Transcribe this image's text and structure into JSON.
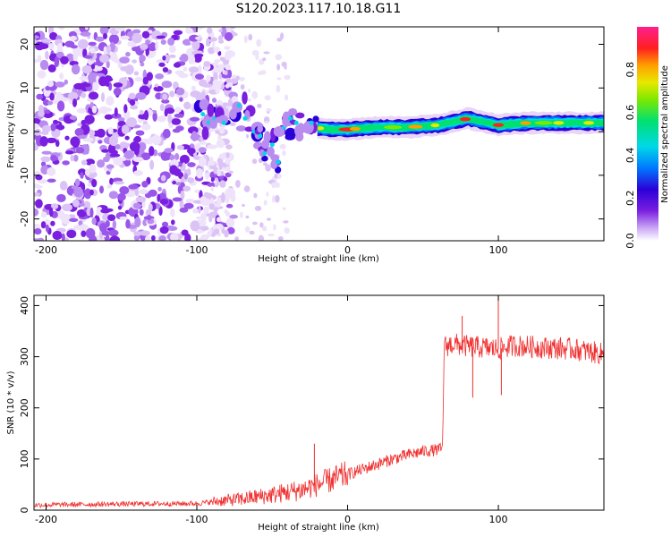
{
  "title": "S120.2023.117.10.18.G11",
  "chart_data": [
    {
      "type": "heatmap",
      "panel": "spectrogram",
      "xlabel": "Height of straight line (km)",
      "ylabel": "Frequency (Hz)",
      "xlim": [
        -208,
        170
      ],
      "ylim": [
        -25,
        24
      ],
      "xticks": [
        -200,
        -100,
        0,
        100
      ],
      "yticks": [
        -20,
        -10,
        0,
        10,
        20
      ],
      "colorbar": {
        "label": "Normalized spectral amplitude",
        "range": [
          0.0,
          1.0
        ],
        "ticks": [
          0.0,
          0.2,
          0.4,
          0.6,
          0.8
        ]
      },
      "ridge": {
        "description_points_x_km": [
          -100,
          -80,
          -60,
          -40,
          -25,
          -10,
          0,
          20,
          40,
          60,
          80,
          100,
          120,
          140,
          170
        ],
        "frequency_hz": [
          3,
          2,
          0,
          -2,
          1,
          0.5,
          0.5,
          1,
          1,
          1.5,
          3,
          1.5,
          2,
          2,
          2
        ]
      },
      "noise_region_km": [
        -208,
        -95
      ],
      "colors": [
        "#ffffff",
        "#e9d5f5",
        "#b98cf0",
        "#7a1fe0",
        "#2a00d8",
        "#0078ff",
        "#00d8e8",
        "#00e070",
        "#c8f000",
        "#ff9f00",
        "#ff2020",
        "#ff2a8a"
      ]
    },
    {
      "type": "line",
      "panel": "snr",
      "xlabel": "Height of straight line (km)",
      "ylabel": "SNR (10 * v/v)",
      "xlim": [
        -208,
        170
      ],
      "ylim": [
        0,
        420
      ],
      "xticks": [
        -200,
        -100,
        0,
        100
      ],
      "yticks": [
        0,
        100,
        200,
        300,
        400
      ],
      "series": [
        {
          "color": "#f03030",
          "trend_x": [
            -208,
            -150,
            -100,
            -85,
            -70,
            -50,
            -30,
            -20,
            -10,
            0,
            10,
            20,
            30,
            40,
            50,
            60,
            63,
            64,
            70,
            80,
            90,
            100,
            110,
            130,
            150,
            170
          ],
          "trend_y": [
            10,
            12,
            13,
            18,
            22,
            30,
            40,
            50,
            60,
            70,
            80,
            90,
            100,
            108,
            115,
            118,
            120,
            320,
            325,
            320,
            318,
            315,
            322,
            318,
            315,
            305
          ]
        }
      ],
      "annotations": [
        {
          "x": -22,
          "y": 130
        },
        {
          "x": 76,
          "y": 380
        },
        {
          "x": 83,
          "y": 220
        },
        {
          "x": 100,
          "y": 420
        },
        {
          "x": 102,
          "y": 225
        }
      ]
    }
  ]
}
